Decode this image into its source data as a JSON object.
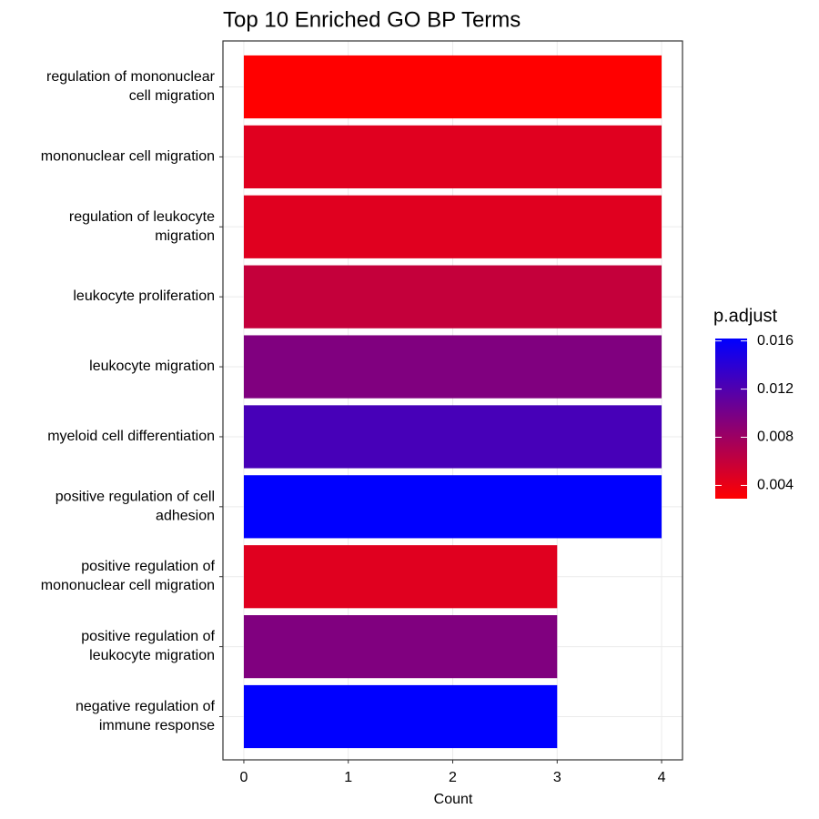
{
  "chart_data": {
    "type": "bar",
    "orientation": "horizontal",
    "title": "Top 10 Enriched GO BP Terms",
    "x_label": "Count",
    "categories": [
      "regulation of mononuclear\ncell migration",
      "mononuclear cell migration",
      "regulation of leukocyte\nmigration",
      "leukocyte proliferation",
      "leukocyte migration",
      "myeloid cell differentiation",
      "positive regulation of cell\nadhesion",
      "positive regulation of\nmononuclear cell migration",
      "positive regulation of\nleukocyte migration",
      "negative regulation of\nimmune response"
    ],
    "values": [
      4,
      4,
      4,
      4,
      4,
      4,
      4,
      3,
      3,
      3
    ],
    "p_adjust": [
      0.0029,
      0.0045,
      0.0045,
      0.006,
      0.0095,
      0.0125,
      0.0162,
      0.0045,
      0.0095,
      0.0162
    ],
    "xlim": [
      -0.2,
      4.2
    ],
    "xticks": [
      0,
      1,
      2,
      3,
      4
    ],
    "grid": true,
    "color_scale": {
      "title": "p.adjust",
      "low": "#ff0000",
      "high": "#0000ff",
      "ticks": [
        0.004,
        0.008,
        0.012,
        0.016
      ]
    }
  }
}
